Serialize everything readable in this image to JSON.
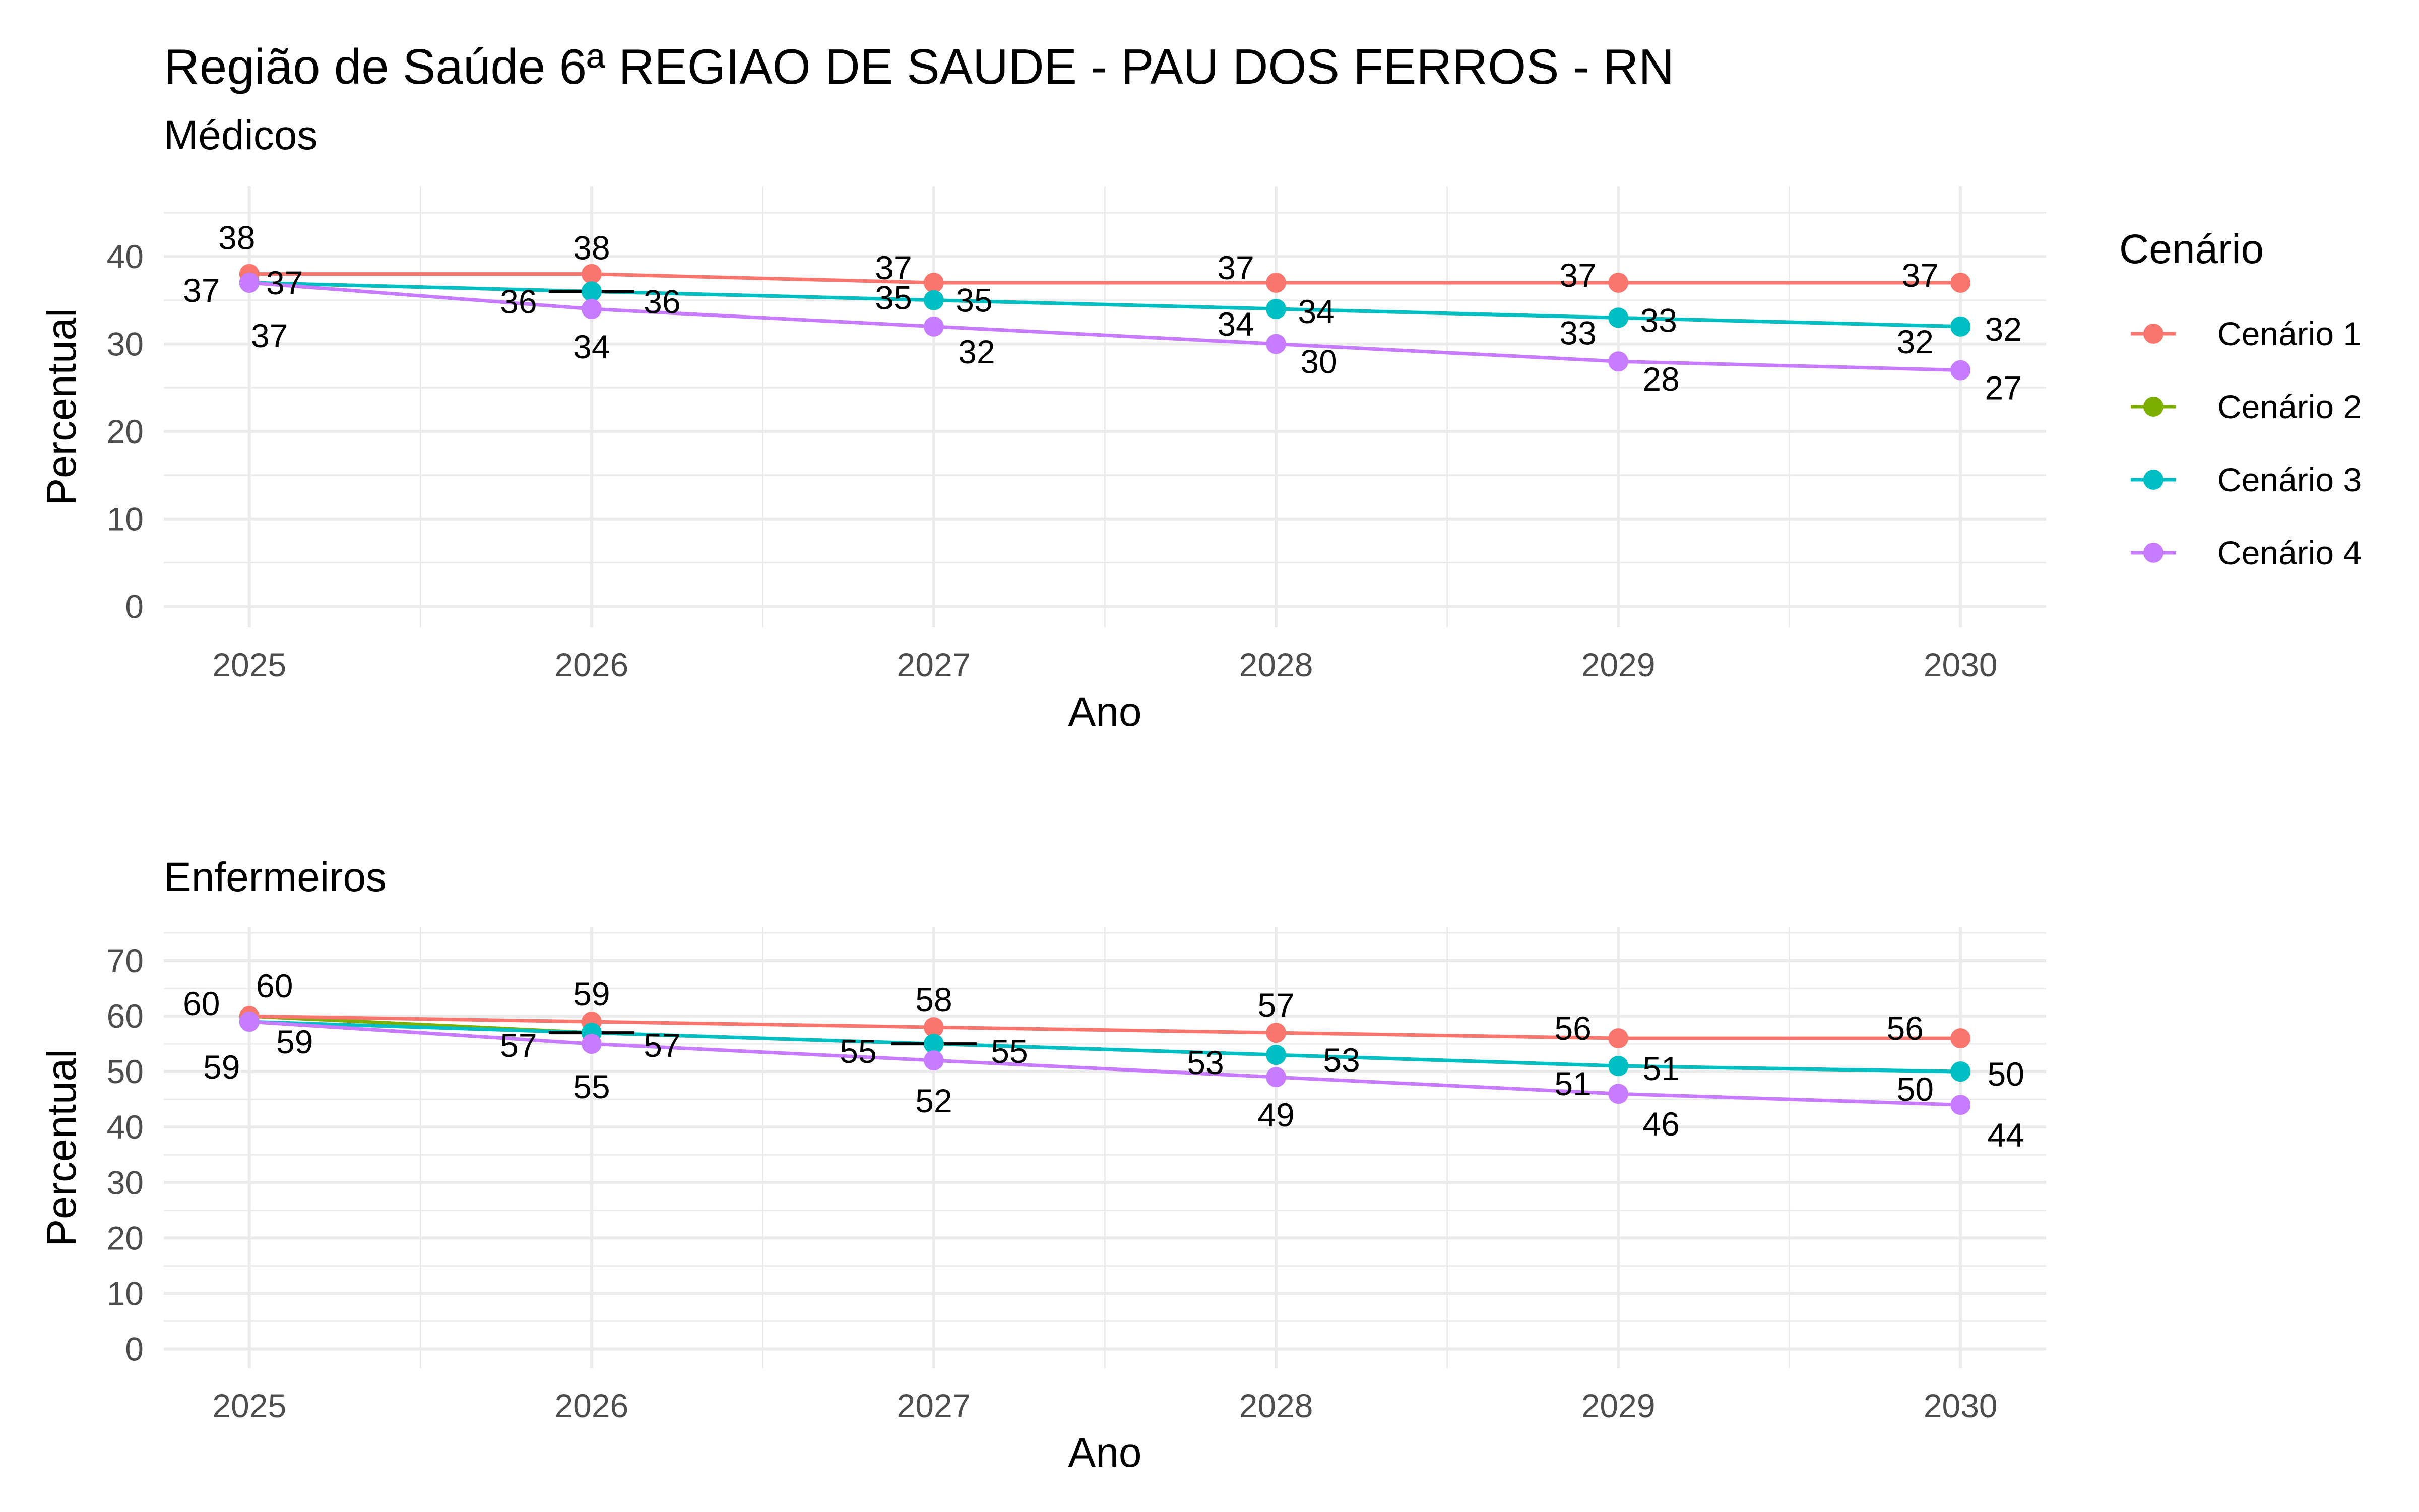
{
  "title": "Região de Saúde 6ª REGIAO DE SAUDE - PAU DOS FERROS - RN",
  "legend": {
    "title": "Cenário",
    "items": [
      {
        "label": "Cenário 1",
        "color": "#F8766D"
      },
      {
        "label": "Cenário 2",
        "color": "#7CAE00"
      },
      {
        "label": "Cenário 3",
        "color": "#00BFC4"
      },
      {
        "label": "Cenário 4",
        "color": "#C77CFF"
      }
    ]
  },
  "chart_data": [
    {
      "type": "line",
      "subtitle": "Médicos",
      "xlabel": "Ano",
      "ylabel": "Percentual",
      "x": [
        2025,
        2026,
        2027,
        2028,
        2029,
        2030
      ],
      "xlim": [
        2024.75,
        2030.25
      ],
      "ylim": [
        -2.4,
        48
      ],
      "yticks": [
        0,
        10,
        20,
        30,
        40
      ],
      "series": [
        {
          "name": "Cenário 1",
          "values": [
            38,
            38,
            37,
            37,
            37,
            37
          ]
        },
        {
          "name": "Cenário 2",
          "values": [
            37,
            36,
            35,
            34,
            33,
            32
          ]
        },
        {
          "name": "Cenário 3",
          "values": [
            37,
            36,
            35,
            34,
            33,
            32
          ]
        },
        {
          "name": "Cenário 4",
          "values": [
            37,
            34,
            32,
            30,
            28,
            27
          ]
        }
      ],
      "segments": [
        {
          "x": 2026,
          "y": 36
        }
      ],
      "grid": true,
      "legend_position": "right"
    },
    {
      "type": "line",
      "subtitle": "Enfermeiros",
      "xlabel": "Ano",
      "ylabel": "Percentual",
      "x": [
        2025,
        2026,
        2027,
        2028,
        2029,
        2030
      ],
      "xlim": [
        2024.75,
        2030.25
      ],
      "ylim": [
        -3.5,
        76
      ],
      "yticks": [
        0,
        10,
        20,
        30,
        40,
        50,
        60,
        70
      ],
      "series": [
        {
          "name": "Cenário 1",
          "values": [
            60,
            59,
            58,
            57,
            56,
            56
          ]
        },
        {
          "name": "Cenário 2",
          "values": [
            60,
            57,
            55,
            53,
            51,
            50
          ]
        },
        {
          "name": "Cenário 3",
          "values": [
            59,
            57,
            55,
            53,
            51,
            50
          ]
        },
        {
          "name": "Cenário 4",
          "values": [
            59,
            55,
            52,
            49,
            46,
            44
          ]
        }
      ],
      "segments": [
        {
          "x": 2026,
          "y": 57
        },
        {
          "x": 2027,
          "y": 55
        }
      ],
      "grid": true,
      "legend_position": "right"
    }
  ]
}
